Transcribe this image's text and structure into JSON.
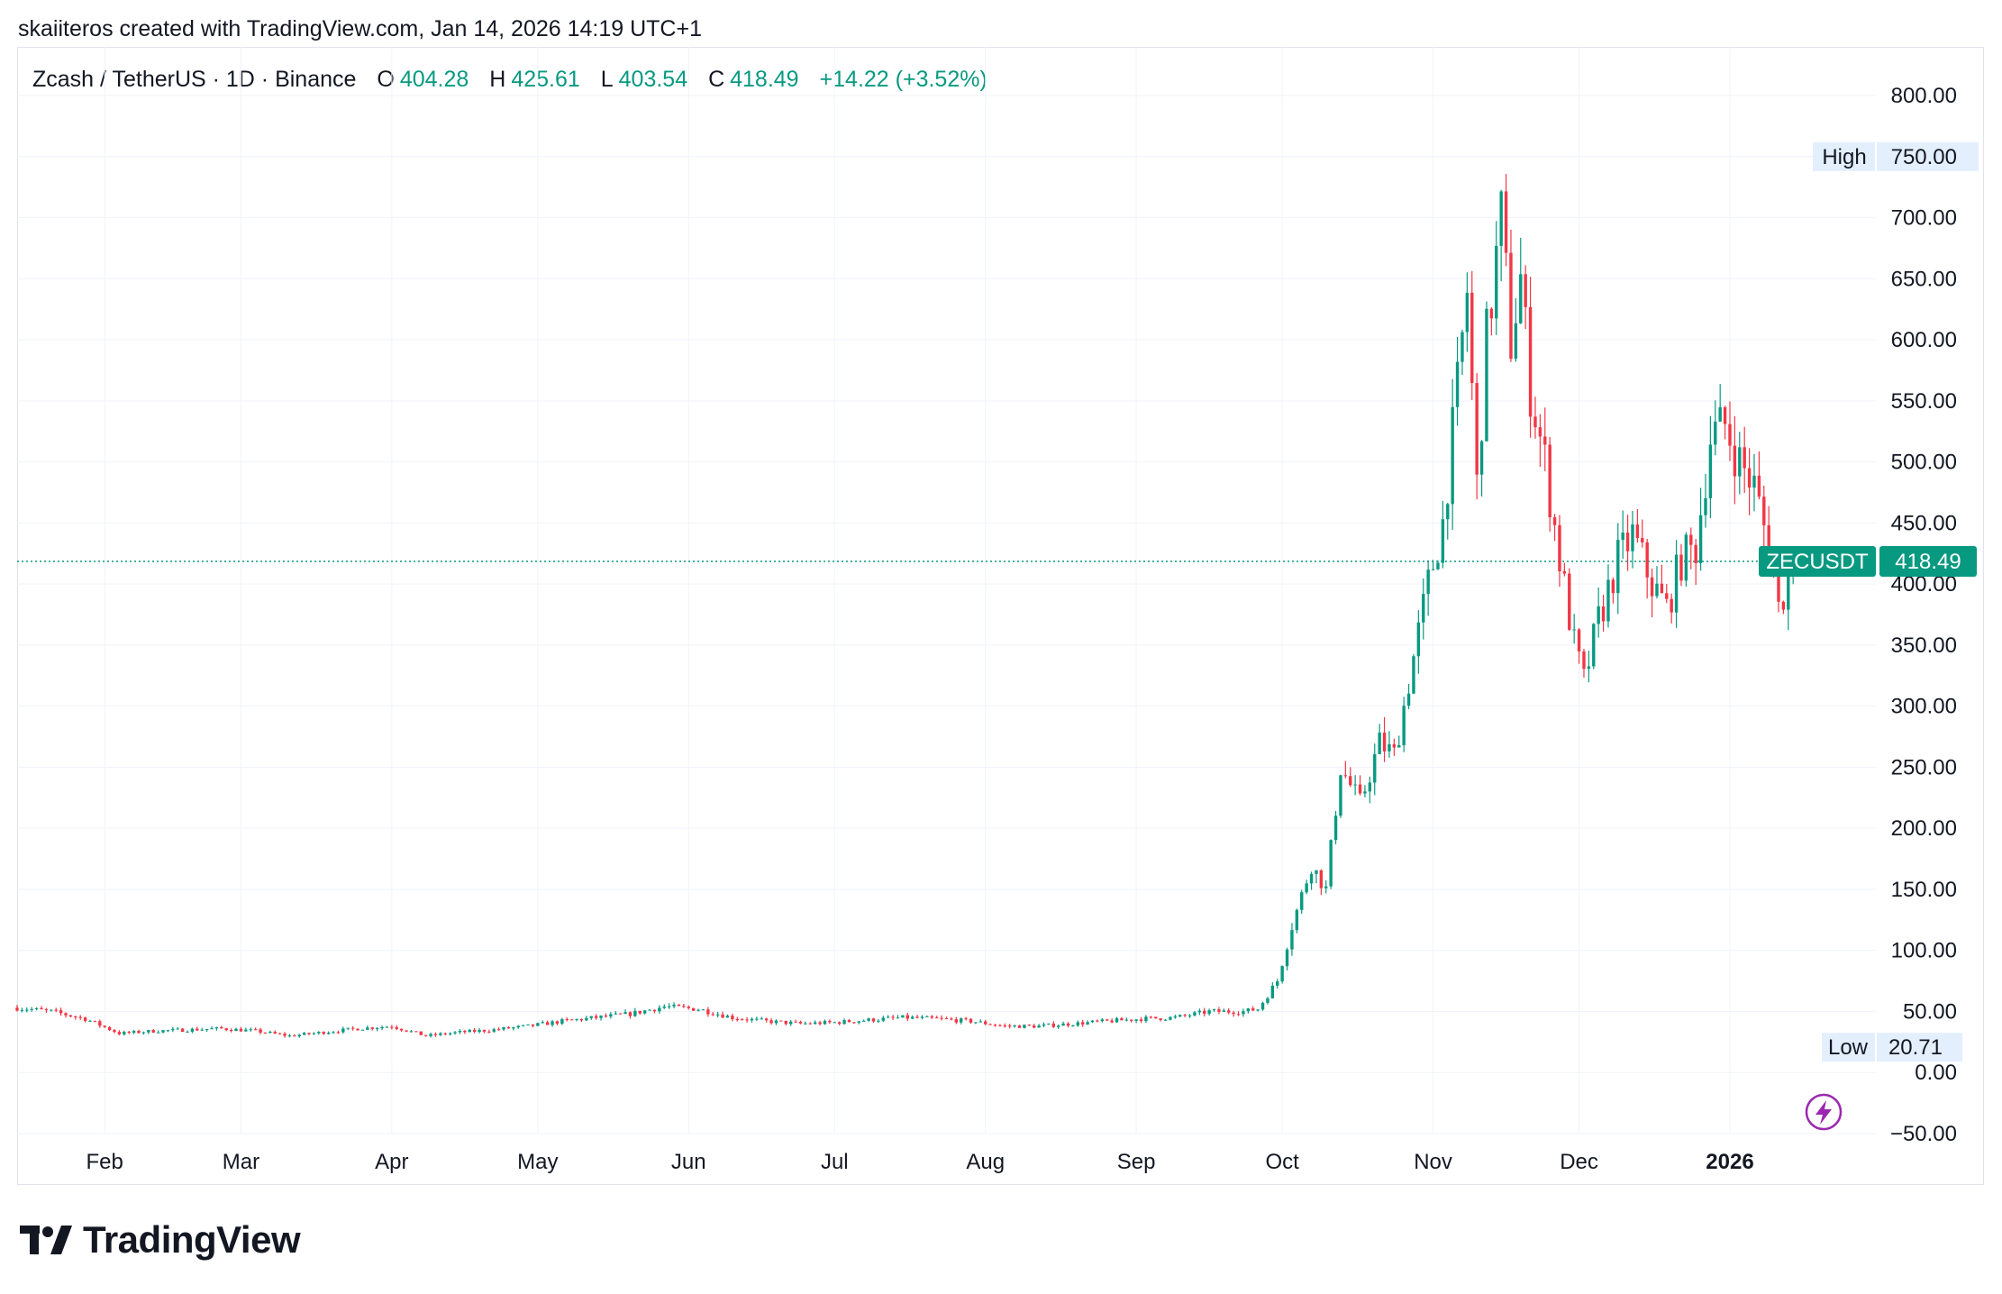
{
  "credit": "skaiiteros created with TradingView.com, Jan 14, 2026 14:19 UTC+1",
  "legend": {
    "title": "Zcash / TetherUS · 1D · Binance",
    "o_label": "O",
    "o_value": "404.28",
    "h_label": "H",
    "h_value": "425.61",
    "l_label": "L",
    "l_value": "403.54",
    "c_label": "C",
    "c_value": "418.49",
    "change": "+14.22 (+3.52%)"
  },
  "markers": {
    "high_label": "High",
    "high_value": "750.00",
    "low_label": "Low",
    "low_value": "20.71",
    "last_symbol": "ZECUSDT",
    "last_value": "418.49"
  },
  "brand": {
    "name": "TradingView"
  },
  "colors": {
    "up": "#089981",
    "down": "#f23645",
    "grid": "#f0f3fa",
    "text": "#131722",
    "tag_bg": "#e3effd",
    "bolt": "#9c27b0"
  },
  "icons": [
    "tradingview-logo-icon",
    "lightning-bolt-icon"
  ],
  "chart_data": {
    "type": "candlestick",
    "symbol": "ZECUSDT",
    "interval": "1D",
    "exchange": "Binance",
    "x_axis_labels": [
      "Feb",
      "Mar",
      "Apr",
      "May",
      "Jun",
      "Jul",
      "Aug",
      "Sep",
      "Oct",
      "Nov",
      "Dec",
      "2026"
    ],
    "y_axis_ticks": [
      "−50.00",
      "0.00",
      "50.00",
      "100.00",
      "150.00",
      "200.00",
      "250.00",
      "300.00",
      "350.00",
      "400.00",
      "450.00",
      "500.00",
      "550.00",
      "600.00",
      "650.00",
      "700.00",
      "750.00",
      "800.00"
    ],
    "ylim": [
      -50,
      800
    ],
    "x_range": [
      "2025-01-14",
      "2026-01-31"
    ],
    "last_price": 418.49,
    "period_high": 750.0,
    "period_low": 20.71,
    "weekly_closes": {
      "dates": [
        "2025-01-14",
        "2025-01-21",
        "2025-01-28",
        "2025-02-04",
        "2025-02-11",
        "2025-02-18",
        "2025-02-25",
        "2025-03-04",
        "2025-03-11",
        "2025-03-18",
        "2025-03-25",
        "2025-04-01",
        "2025-04-08",
        "2025-04-15",
        "2025-04-22",
        "2025-04-29",
        "2025-05-06",
        "2025-05-13",
        "2025-05-20",
        "2025-05-27",
        "2025-06-03",
        "2025-06-10",
        "2025-06-17",
        "2025-06-24",
        "2025-07-01",
        "2025-07-08",
        "2025-07-15",
        "2025-07-22",
        "2025-07-29",
        "2025-08-05",
        "2025-08-12",
        "2025-08-19",
        "2025-08-26",
        "2025-09-02",
        "2025-09-09",
        "2025-09-16",
        "2025-09-23",
        "2025-09-26",
        "2025-09-30",
        "2025-10-03",
        "2025-10-07",
        "2025-10-10",
        "2025-10-13",
        "2025-10-17",
        "2025-10-21",
        "2025-10-24",
        "2025-10-28",
        "2025-10-31",
        "2025-11-03",
        "2025-11-06",
        "2025-11-08",
        "2025-11-10",
        "2025-11-12",
        "2025-11-15",
        "2025-11-17",
        "2025-11-19",
        "2025-11-21",
        "2025-11-24",
        "2025-11-27",
        "2025-11-30",
        "2025-12-02",
        "2025-12-05",
        "2025-12-09",
        "2025-12-12",
        "2025-12-16",
        "2025-12-19",
        "2025-12-22",
        "2025-12-25",
        "2025-12-28",
        "2025-12-31",
        "2026-01-03",
        "2026-01-06",
        "2026-01-09",
        "2026-01-11",
        "2026-01-14"
      ],
      "close": [
        53,
        50,
        44,
        32,
        34,
        35,
        36,
        34,
        30,
        33,
        36,
        38,
        30,
        33,
        35,
        38,
        42,
        45,
        48,
        54,
        52,
        45,
        42,
        40,
        41,
        43,
        45,
        44,
        42,
        38,
        38,
        40,
        42,
        44,
        45,
        50,
        50,
        52,
        75,
        120,
        170,
        150,
        250,
        220,
        270,
        260,
        340,
        400,
        450,
        560,
        640,
        480,
        600,
        700,
        600,
        650,
        560,
        500,
        420,
        350,
        320,
        370,
        420,
        440,
        400,
        380,
        420,
        430,
        520,
        530,
        500,
        480,
        430,
        380,
        418.49
      ]
    }
  }
}
